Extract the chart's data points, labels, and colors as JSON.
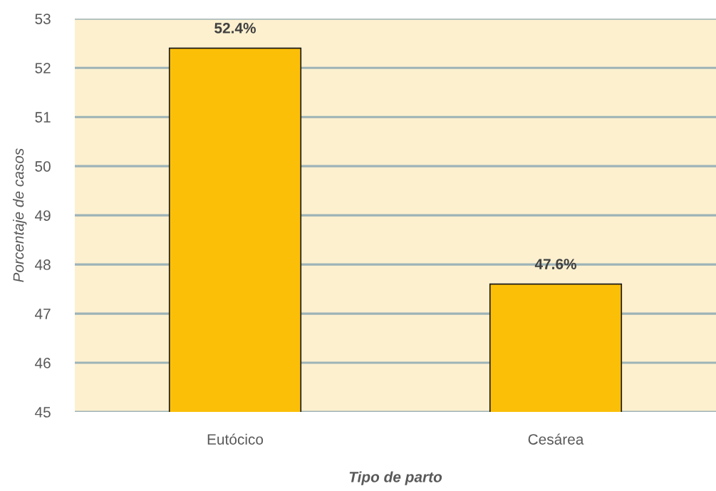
{
  "chart_data": {
    "type": "bar",
    "xlabel": "Tipo de parto",
    "ylabel": "Porcentaje de casos",
    "categories": [
      "Eutócico",
      "Cesárea"
    ],
    "values": [
      52.4,
      47.6
    ],
    "color": "#fcbf07",
    "value_labels": [
      "52.4%",
      "47.6%"
    ],
    "ylim": [
      45,
      53
    ],
    "yticks": [
      45,
      46,
      47,
      48,
      49,
      50,
      51,
      52,
      53
    ],
    "grid": "y"
  }
}
